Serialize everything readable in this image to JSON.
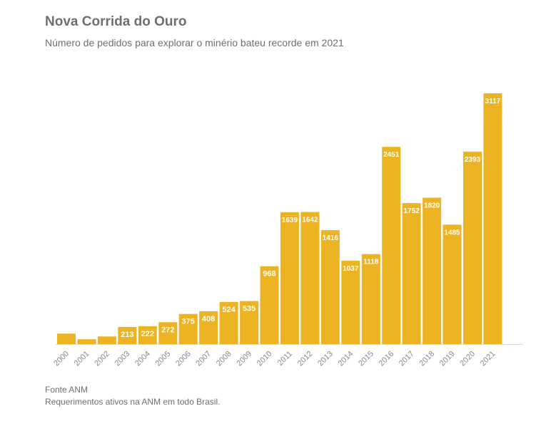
{
  "header": {
    "title": "Nova Corrida do Ouro",
    "subtitle": "Número de pedidos para explorar o minério bateu recorde em 2021"
  },
  "footer": {
    "source": "Fonte ANM",
    "note": "Requerimentos ativos na ANM em todo Brasil."
  },
  "colors": {
    "bar": "#ecb322",
    "label_text": "#ffffff",
    "tick_text": "#8a8a8a",
    "axis": "#d8d8d8"
  },
  "chart_data": {
    "type": "bar",
    "categories": [
      "2000",
      "2001",
      "2002",
      "2003",
      "2004",
      "2005",
      "2006",
      "2007",
      "2008",
      "2009",
      "2010",
      "2011",
      "2012",
      "2013",
      "2014",
      "2015",
      "2016",
      "2017",
      "2018",
      "2019",
      "2020",
      "2021"
    ],
    "values": [
      130,
      60,
      95,
      213,
      222,
      272,
      375,
      408,
      524,
      535,
      968,
      1639,
      1642,
      1416,
      1037,
      1118,
      2451,
      1752,
      1820,
      1485,
      2393,
      3117
    ],
    "value_labels": [
      "",
      "",
      "",
      "213",
      "222",
      "272",
      "375",
      "408",
      "524",
      "535",
      "968",
      "1639",
      "1642",
      "1416",
      "1037",
      "1118",
      "2451",
      "1752",
      "1820",
      "1485",
      "2393",
      "3117"
    ],
    "ylim": [
      0,
      3117
    ],
    "grid": false,
    "legend": false
  }
}
